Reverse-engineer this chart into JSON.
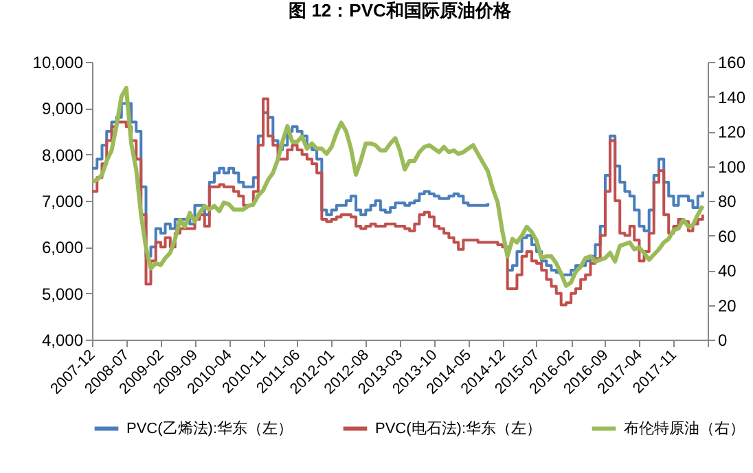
{
  "chart_data": {
    "type": "line",
    "title": "图 12：PVC和国际原油价格",
    "x": [
      "2007-12",
      "2008-01",
      "2008-02",
      "2008-03",
      "2008-04",
      "2008-05",
      "2008-06",
      "2008-07",
      "2008-08",
      "2008-09",
      "2008-10",
      "2008-11",
      "2008-12",
      "2009-01",
      "2009-02",
      "2009-03",
      "2009-04",
      "2009-05",
      "2009-06",
      "2009-07",
      "2009-08",
      "2009-09",
      "2009-10",
      "2009-11",
      "2009-12",
      "2010-01",
      "2010-02",
      "2010-03",
      "2010-04",
      "2010-05",
      "2010-06",
      "2010-07",
      "2010-08",
      "2010-09",
      "2010-10",
      "2010-11",
      "2010-12",
      "2011-01",
      "2011-02",
      "2011-03",
      "2011-04",
      "2011-05",
      "2011-06",
      "2011-07",
      "2011-08",
      "2011-09",
      "2011-10",
      "2011-11",
      "2011-12",
      "2012-01",
      "2012-02",
      "2012-03",
      "2012-04",
      "2012-05",
      "2012-06",
      "2012-07",
      "2012-08",
      "2012-09",
      "2012-10",
      "2012-11",
      "2012-12",
      "2013-01",
      "2013-02",
      "2013-03",
      "2013-04",
      "2013-05",
      "2013-06",
      "2013-07",
      "2013-08",
      "2013-09",
      "2013-10",
      "2013-11",
      "2013-12",
      "2014-01",
      "2014-02",
      "2014-03",
      "2014-04",
      "2014-05",
      "2014-06",
      "2014-07",
      "2014-08",
      "2014-09",
      "2014-10",
      "2014-11",
      "2014-12",
      "2015-01",
      "2015-02",
      "2015-03",
      "2015-04",
      "2015-05",
      "2015-06",
      "2015-07",
      "2015-08",
      "2015-09",
      "2015-10",
      "2015-11",
      "2015-12",
      "2016-01",
      "2016-02",
      "2016-03",
      "2016-04",
      "2016-05",
      "2016-06",
      "2016-07",
      "2016-08",
      "2016-09",
      "2016-10",
      "2016-11",
      "2016-12",
      "2017-01",
      "2017-02",
      "2017-03",
      "2017-04",
      "2017-05",
      "2017-06",
      "2017-07",
      "2017-08",
      "2017-09",
      "2017-10",
      "2017-11",
      "2017-12",
      "2018-01",
      "2018-02",
      "2018-03",
      "2018-04",
      "2018-05"
    ],
    "series": [
      {
        "name": "PVC(乙烯法):华东（左）",
        "type": "step",
        "color": "#4a7ebb",
        "values": [
          7700,
          7900,
          8200,
          8500,
          8700,
          8800,
          9100,
          9100,
          8700,
          8500,
          7300,
          5800,
          6000,
          6400,
          6300,
          6500,
          6400,
          6600,
          6600,
          6600,
          6500,
          6900,
          6900,
          6700,
          7400,
          7600,
          7700,
          7600,
          7700,
          7600,
          7400,
          7300,
          7300,
          7500,
          8400,
          8900,
          8800,
          8300,
          8100,
          8200,
          8500,
          8600,
          8500,
          8400,
          8200,
          8100,
          7900,
          6800,
          6700,
          6800,
          6900,
          6900,
          7000,
          7100,
          6800,
          6700,
          6800,
          6900,
          7000,
          6800,
          6750,
          6850,
          6950,
          6950,
          6900,
          6950,
          7000,
          7150,
          7200,
          7150,
          7100,
          7050,
          7050,
          7100,
          7150,
          7100,
          6950,
          6900,
          6900,
          6900,
          6900,
          6950,
          null,
          null,
          null,
          5500,
          5600,
          5900,
          6200,
          6250,
          6050,
          5900,
          5700,
          5600,
          5500,
          5450,
          5400,
          5400,
          5500,
          5600,
          5600,
          5700,
          5800,
          6050,
          6450,
          7550,
          8400,
          7750,
          7400,
          7200,
          7100,
          6800,
          6450,
          6350,
          6800,
          7550,
          7900,
          7400,
          7100,
          6900,
          7100,
          7100,
          7000,
          6850,
          7100,
          7200
        ]
      },
      {
        "name": "PVC(电石法):华东（左）",
        "type": "step",
        "color": "#c0504d",
        "values": [
          7200,
          7500,
          7800,
          8300,
          8600,
          8700,
          8700,
          8600,
          8300,
          7900,
          6700,
          5200,
          5700,
          6100,
          6000,
          6200,
          6000,
          6300,
          6400,
          6400,
          6400,
          6600,
          6700,
          6450,
          7300,
          7300,
          7350,
          7300,
          7300,
          7200,
          7100,
          6900,
          6900,
          7200,
          8200,
          9200,
          8400,
          8200,
          7900,
          7900,
          8100,
          8200,
          8100,
          8000,
          7900,
          7800,
          7600,
          6600,
          6550,
          6600,
          6650,
          6700,
          6700,
          6650,
          6450,
          6400,
          6450,
          6500,
          6450,
          6450,
          6500,
          6500,
          6450,
          6450,
          6400,
          6350,
          6500,
          6700,
          6750,
          6650,
          6450,
          6400,
          6300,
          6200,
          6100,
          5950,
          6150,
          6150,
          6150,
          6100,
          6100,
          6100,
          6100,
          6050,
          6000,
          5100,
          5100,
          5400,
          5800,
          5900,
          5700,
          5650,
          5500,
          5300,
          5150,
          5000,
          4750,
          4800,
          5000,
          5100,
          5300,
          5400,
          5650,
          5750,
          6250,
          7200,
          8300,
          7000,
          6300,
          6250,
          6450,
          6150,
          5700,
          5900,
          6300,
          7400,
          7650,
          6700,
          6300,
          6450,
          6600,
          6550,
          6350,
          6500,
          6600,
          6700
        ]
      },
      {
        "name": "布伦特原油（右）",
        "type": "line",
        "axis": "y2",
        "color": "#9bbb59",
        "values": [
          91,
          92,
          95,
          103,
          109,
          123,
          140,
          145,
          113,
          98,
          72,
          53,
          41,
          44,
          43,
          47,
          50,
          58,
          69,
          65,
          73,
          68,
          73,
          77,
          75,
          77,
          74,
          79,
          78,
          75,
          75,
          75,
          77,
          78,
          83,
          86,
          92,
          96,
          104,
          114,
          123,
          114,
          114,
          117,
          110,
          113,
          110,
          110,
          107,
          111,
          119,
          125,
          120,
          110,
          95,
          103,
          113,
          113,
          112,
          109,
          109,
          113,
          116,
          109,
          98,
          103,
          103,
          108,
          111,
          112,
          110,
          108,
          111,
          108,
          109,
          107,
          108,
          110,
          112,
          107,
          102,
          97,
          87,
          79,
          62,
          48,
          58,
          56,
          60,
          65,
          62,
          57,
          47,
          48,
          48,
          44,
          38,
          31,
          33,
          39,
          42,
          47,
          48,
          45,
          46,
          47,
          50,
          45,
          54,
          55,
          56,
          52,
          53,
          50,
          46,
          49,
          52,
          56,
          58,
          63,
          64,
          69,
          65,
          66,
          72,
          77
        ]
      }
    ],
    "xlim": [
      "2007-12",
      "2018-06"
    ],
    "xticks": [
      "2007-12",
      "2008-07",
      "2009-02",
      "2009-09",
      "2010-04",
      "2010-11",
      "2011-06",
      "2012-01",
      "2012-08",
      "2013-03",
      "2013-10",
      "2014-05",
      "2014-12",
      "2015-07",
      "2016-02",
      "2016-09",
      "2017-04",
      "2017-11",
      {
        "value": "2018-06",
        "label": null
      }
    ],
    "ylim": [
      4000,
      10000
    ],
    "yticks": [
      {
        "value": 4000,
        "label": "4,000"
      },
      {
        "value": 5000,
        "label": "5,000"
      },
      {
        "value": 6000,
        "label": "6,000"
      },
      {
        "value": 7000,
        "label": "7,000"
      },
      {
        "value": 8000,
        "label": "8,000"
      },
      {
        "value": 9000,
        "label": "9,000"
      },
      {
        "value": 10000,
        "label": "10,000"
      }
    ],
    "y2lim": [
      0,
      160
    ],
    "y2ticks": [
      0,
      20,
      40,
      60,
      80,
      100,
      120,
      140,
      160
    ],
    "grid": false,
    "legend": "bottom"
  }
}
